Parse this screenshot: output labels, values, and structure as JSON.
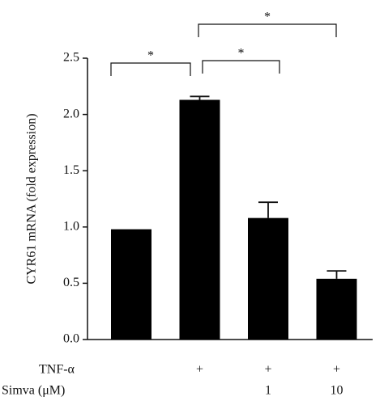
{
  "chart_data": {
    "type": "bar",
    "y_label": "CYR61 mRNA (fold expression)",
    "categories": [
      null,
      null,
      null,
      null
    ],
    "values": [
      0.98,
      2.13,
      1.08,
      0.54
    ],
    "errors": [
      null,
      0.03,
      0.14,
      0.07
    ],
    "color": "#000000",
    "ylim": [
      0,
      2.5
    ],
    "yticks": [
      {
        "value": 0,
        "label": "0.0"
      },
      0.5,
      {
        "value": 1,
        "label": "1.0"
      },
      1.5,
      {
        "value": 2,
        "label": "2.0"
      },
      2.5
    ],
    "significance": [
      "*",
      "*",
      "*"
    ],
    "conditions": [
      {
        "label": "TNF-α",
        "cells": [
          null,
          "+",
          "+",
          "+"
        ]
      },
      {
        "label": "Simva (μM)",
        "cells": [
          null,
          null,
          "1",
          "10"
        ]
      }
    ]
  }
}
